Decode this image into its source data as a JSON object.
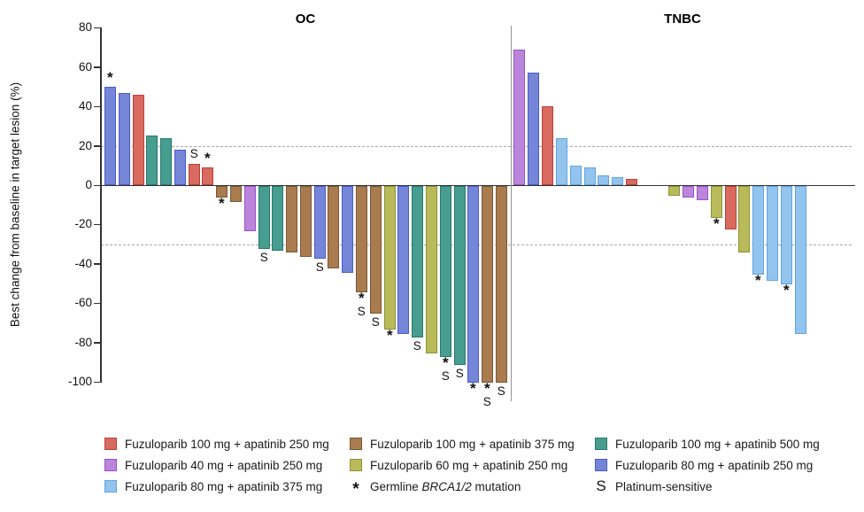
{
  "yaxis": {
    "label": "Best change from baseline in target lesion (%)"
  },
  "chart_data": {
    "type": "bar",
    "ylabel": "Best change from baseline in target lesion (%)",
    "ylim": [
      -100,
      80
    ],
    "yticks": [
      80,
      60,
      40,
      20,
      0,
      -20,
      -40,
      -60,
      -80,
      -100
    ],
    "reference_lines": [
      20,
      -30
    ],
    "grid": "dashed reference lines only",
    "legend_position": "bottom",
    "groups": {
      "f100_a250": {
        "label": "Fuzuloparib 100 mg + apatinib 250 mg",
        "fill": "#D86A60",
        "border": "#BC3F36"
      },
      "f100_a375": {
        "label": "Fuzuloparib 100 mg + apatinib 375 mg",
        "fill": "#A97C50",
        "border": "#7B5633"
      },
      "f100_a500": {
        "label": "Fuzuloparib 100 mg + apatinib 500 mg",
        "fill": "#479D8F",
        "border": "#26796C"
      },
      "f40_a250": {
        "label": "Fuzuloparib 40 mg + apatinib 250 mg",
        "fill": "#BC85DC",
        "border": "#9751C9"
      },
      "f60_a250": {
        "label": "Fuzuloparib 60 mg + apatinib 250 mg",
        "fill": "#B9BA59",
        "border": "#8F9234"
      },
      "f80_a250": {
        "label": "Fuzuloparib 80 mg + apatinib 250 mg",
        "fill": "#7585D8",
        "border": "#4A5BC8"
      },
      "f80_a375": {
        "label": "Fuzuloparib 80 mg + apatinib 375 mg",
        "fill": "#92C4ED",
        "border": "#5FA4DF"
      }
    },
    "panels": [
      {
        "title": "OC",
        "bars": [
          {
            "g": "f80_a250",
            "v": 50,
            "m": [
              "*"
            ]
          },
          {
            "g": "f80_a250",
            "v": 47
          },
          {
            "g": "f100_a250",
            "v": 46
          },
          {
            "g": "f100_a500",
            "v": 25
          },
          {
            "g": "f100_a500",
            "v": 24
          },
          {
            "g": "f80_a250",
            "v": 18
          },
          {
            "g": "f100_a250",
            "v": 11,
            "m": [
              "S"
            ]
          },
          {
            "g": "f100_a250",
            "v": 9,
            "m": [
              "*"
            ]
          },
          {
            "g": "f100_a375",
            "v": -6,
            "m": [
              "*"
            ]
          },
          {
            "g": "f100_a375",
            "v": -8
          },
          {
            "g": "f40_a250",
            "v": -23
          },
          {
            "g": "f100_a500",
            "v": -32,
            "m": [
              "S"
            ]
          },
          {
            "g": "f100_a500",
            "v": -33
          },
          {
            "g": "f100_a375",
            "v": -34
          },
          {
            "g": "f100_a375",
            "v": -36
          },
          {
            "g": "f80_a250",
            "v": -37,
            "m": [
              "S"
            ]
          },
          {
            "g": "f100_a375",
            "v": -42
          },
          {
            "g": "f80_a250",
            "v": -44
          },
          {
            "g": "f100_a375",
            "v": -54,
            "m": [
              "*",
              "S"
            ]
          },
          {
            "g": "f100_a375",
            "v": -65,
            "m": [
              "S"
            ]
          },
          {
            "g": "f60_a250",
            "v": -73,
            "m": [
              "*"
            ]
          },
          {
            "g": "f80_a250",
            "v": -75
          },
          {
            "g": "f100_a500",
            "v": -77,
            "m": [
              "S"
            ]
          },
          {
            "g": "f60_a250",
            "v": -85
          },
          {
            "g": "f100_a500",
            "v": -87,
            "m": [
              "*",
              "S"
            ]
          },
          {
            "g": "f100_a500",
            "v": -91,
            "m": [
              "S"
            ]
          },
          {
            "g": "f80_a250",
            "v": -100,
            "m": [
              "*"
            ]
          },
          {
            "g": "f100_a375",
            "v": -100,
            "m": [
              "*",
              "S"
            ]
          },
          {
            "g": "f100_a375",
            "v": -100,
            "m": [
              "S"
            ]
          }
        ]
      },
      {
        "title": "TNBC",
        "bars": [
          {
            "g": "f40_a250",
            "v": 69
          },
          {
            "g": "f80_a250",
            "v": 57
          },
          {
            "g": "f100_a250",
            "v": 40
          },
          {
            "g": "f80_a375",
            "v": 24
          },
          {
            "g": "f80_a375",
            "v": 10
          },
          {
            "g": "f80_a375",
            "v": 9
          },
          {
            "g": "f80_a375",
            "v": 5
          },
          {
            "g": "f80_a375",
            "v": 4
          },
          {
            "g": "f100_a250",
            "v": 3
          },
          {
            "v": 0
          },
          {
            "v": 0
          },
          {
            "g": "f60_a250",
            "v": -5
          },
          {
            "g": "f40_a250",
            "v": -6
          },
          {
            "g": "f40_a250",
            "v": -7
          },
          {
            "g": "f60_a250",
            "v": -16,
            "m": [
              "*"
            ]
          },
          {
            "g": "f100_a250",
            "v": -22
          },
          {
            "g": "f60_a250",
            "v": -34
          },
          {
            "g": "f80_a375",
            "v": -45,
            "m": [
              "*"
            ]
          },
          {
            "g": "f80_a375",
            "v": -48
          },
          {
            "g": "f80_a375",
            "v": -50,
            "m": [
              "*"
            ]
          },
          {
            "g": "f80_a375",
            "v": -75
          }
        ]
      }
    ]
  },
  "legend": {
    "columns": [
      [
        {
          "type": "swatch",
          "group": "f100_a250"
        },
        {
          "type": "swatch",
          "group": "f40_a250"
        },
        {
          "type": "swatch",
          "group": "f80_a375"
        }
      ],
      [
        {
          "type": "swatch",
          "group": "f100_a375"
        },
        {
          "type": "swatch",
          "group": "f60_a250"
        },
        {
          "type": "marker",
          "symbol": "*",
          "prefix": "Germline ",
          "italic": "BRCA1/2",
          "suffix": " mutation"
        }
      ],
      [
        {
          "type": "swatch",
          "group": "f100_a500"
        },
        {
          "type": "swatch",
          "group": "f80_a250"
        },
        {
          "type": "marker",
          "symbol": "S",
          "prefix": "Platinum-sensitive",
          "italic": "",
          "suffix": ""
        }
      ]
    ]
  }
}
